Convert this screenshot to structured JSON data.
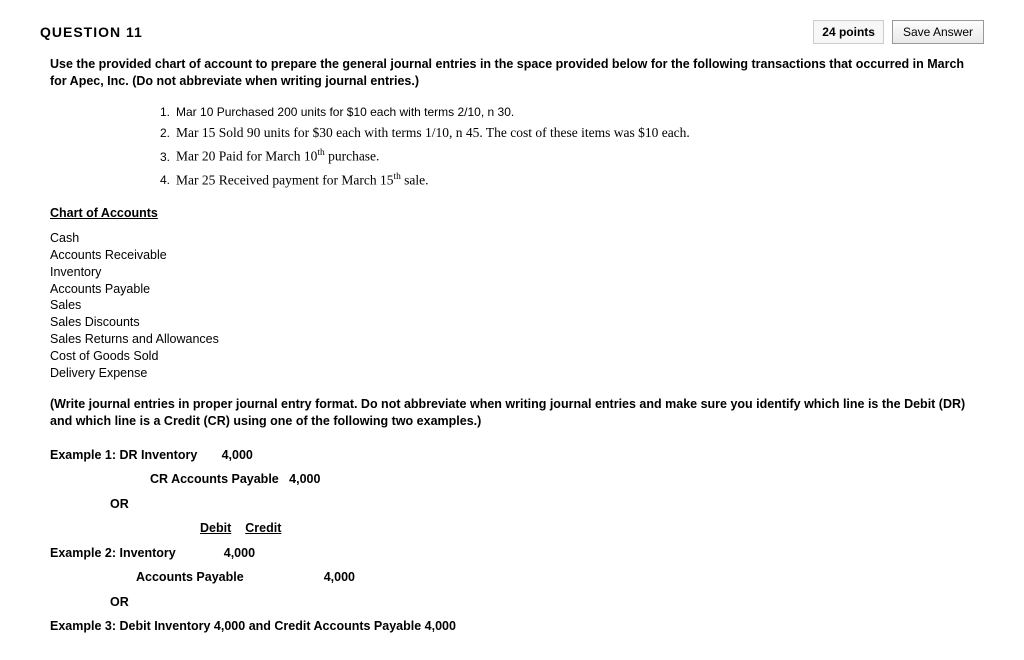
{
  "header": {
    "question_label": "QUESTION 11",
    "points_text": "24 points",
    "save_button": "Save Answer"
  },
  "instructions": "Use the provided chart of account to prepare the general journal entries in the space provided below for the following transactions that occurred in March for Apec, Inc. (Do not abbreviate when writing journal entries.)",
  "transactions": {
    "t1_num": "1.",
    "t1": "Mar 10 Purchased 200 units for $10 each with terms 2/10, n 30.",
    "t2_num": "2.",
    "t2": "Mar 15 Sold 90 units for $30 each with terms 1/10, n 45. The cost of these items was $10 each.",
    "t3_num": "3.",
    "t3a": "Mar 20 Paid for March 10",
    "t3b": " purchase.",
    "t4_num": "4.",
    "t4a": "Mar 25 Received payment for March 15",
    "t4b": " sale."
  },
  "chart_heading": "Chart of Accounts",
  "accounts": [
    "Cash",
    "Accounts Receivable",
    "Inventory",
    "Accounts Payable",
    "Sales",
    "Sales Discounts",
    "Sales Returns and Allowances",
    "Cost of Goods Sold",
    "Delivery Expense"
  ],
  "format_note": "(Write journal entries in proper journal entry format. Do not abbreviate when writing journal entries and make sure you identify which line is the Debit (DR) and which line is a Credit (CR) using one of the following two examples.)",
  "examples": {
    "ex1_label": "Example 1:  DR Inventory",
    "ex1_amt1": "4,000",
    "ex1_cr": "CR Accounts Payable",
    "ex1_amt2": "4,000",
    "or": "OR",
    "debit_h": "Debit",
    "credit_h": "Credit",
    "ex2_label": "Example 2:  Inventory",
    "ex2_amt1": "4,000",
    "ex2_ap": "Accounts Payable",
    "ex2_amt2": "4,000",
    "ex3": "Example 3: Debit Inventory 4,000 and Credit Accounts Payable 4,000"
  },
  "sup": "th"
}
